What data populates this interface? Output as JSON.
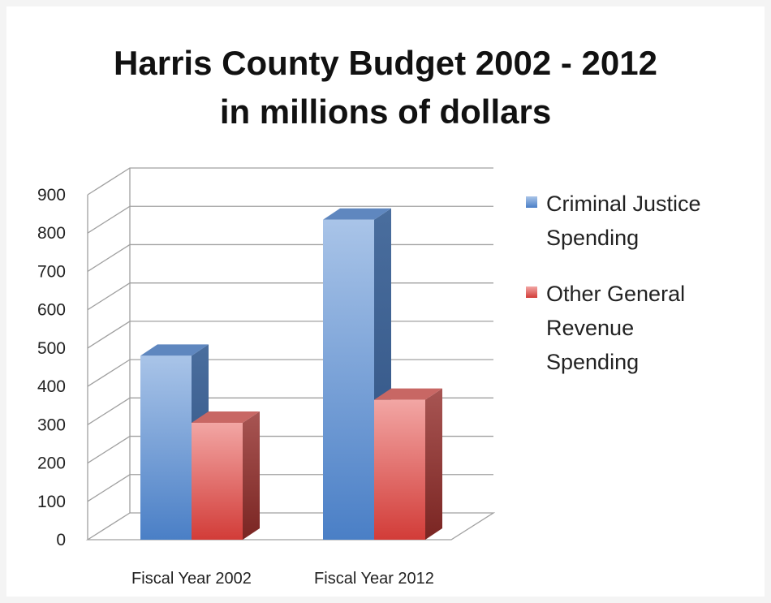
{
  "chart_data": {
    "type": "bar",
    "title": "Harris County Budget 2002 - 2012",
    "subtitle": "in millions of dollars",
    "categories": [
      "Fiscal Year 2002",
      "Fiscal Year 2012"
    ],
    "series": [
      {
        "name": "Criminal Justice Spending",
        "values": [
          480,
          835
        ],
        "color": "#4f81bd"
      },
      {
        "name": "Other General Revenue Spending",
        "values": [
          305,
          365
        ],
        "color": "#c0504d"
      }
    ],
    "ylim": [
      0,
      900
    ],
    "yticks": [
      "0",
      "100",
      "200",
      "300",
      "400",
      "500",
      "600",
      "700",
      "800",
      "900"
    ],
    "grid": true,
    "legend": "right",
    "style": "3d-column"
  }
}
